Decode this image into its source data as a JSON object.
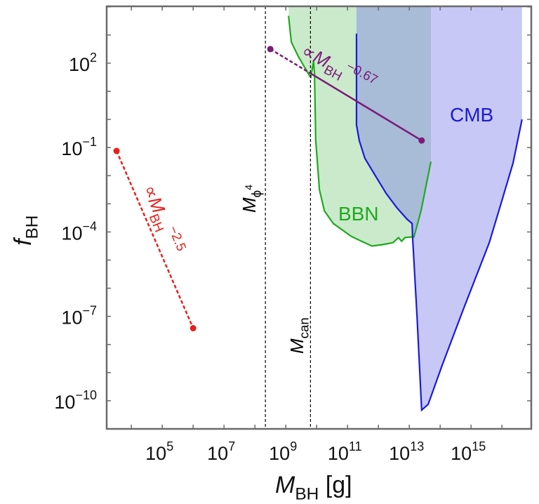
{
  "chart_data": {
    "type": "area",
    "xlabel": {
      "base": "M",
      "sub": "BH",
      "rest": " [g]"
    },
    "ylabel": {
      "base": "f",
      "sub": "BH"
    },
    "x_scale": "log",
    "y_scale": "log",
    "xlim_log10": [
      3.2,
      16.95
    ],
    "ylim_log10": [
      -11.0,
      4.02
    ],
    "x_tick_labels_log10": [
      5,
      7,
      9,
      11,
      13,
      15
    ],
    "y_tick_labels_log10": [
      2,
      -1,
      -4,
      -7,
      -10
    ],
    "grid": false,
    "colors": {
      "bbn": "#1faa1f",
      "bbn_fill": "#cbeacb",
      "cmb": "#1a1ad8",
      "cmb_fill": "rgba(110,110,235,0.38)",
      "red": "#e8201a",
      "purple": "#7a1a78",
      "dashed": "#000000"
    },
    "regions": [
      {
        "name": "BBN",
        "label": "BBN",
        "boundary_log10": [
          [
            9.09,
            3.68
          ],
          [
            9.18,
            2.75
          ],
          [
            9.4,
            2.25
          ],
          [
            9.77,
            1.55
          ],
          [
            9.81,
            1.5
          ],
          [
            9.9,
            2.05
          ],
          [
            9.93,
            1.63
          ],
          [
            9.97,
            -0.75
          ],
          [
            10.09,
            -2.5
          ],
          [
            10.25,
            -3.25
          ],
          [
            10.54,
            -3.7
          ],
          [
            11.11,
            -4.15
          ],
          [
            11.45,
            -4.33
          ],
          [
            11.79,
            -4.5
          ],
          [
            12.13,
            -4.45
          ],
          [
            12.47,
            -4.38
          ],
          [
            12.65,
            -4.2
          ],
          [
            12.75,
            -4.33
          ],
          [
            12.86,
            -4.2
          ],
          [
            13.04,
            -4.18
          ],
          [
            13.15,
            -4.18
          ],
          [
            13.38,
            -3.25
          ],
          [
            13.7,
            -1.5
          ]
        ]
      },
      {
        "name": "CMB",
        "label": "CMB",
        "boundary_log10": [
          [
            11.29,
            3.05
          ],
          [
            11.29,
            -0.2
          ],
          [
            11.38,
            -0.75
          ],
          [
            11.56,
            -1.38
          ],
          [
            11.9,
            -2.0
          ],
          [
            12.25,
            -2.63
          ],
          [
            12.59,
            -3.13
          ],
          [
            12.93,
            -3.55
          ],
          [
            13.09,
            -3.7
          ],
          [
            13.11,
            -4.25
          ],
          [
            13.25,
            -7.0
          ],
          [
            13.4,
            -10.33
          ],
          [
            13.61,
            -10.13
          ],
          [
            14.06,
            -8.75
          ],
          [
            14.75,
            -6.75
          ],
          [
            15.59,
            -4.38
          ],
          [
            16.0,
            -2.88
          ],
          [
            16.36,
            -1.55
          ],
          [
            16.65,
            0.0
          ]
        ]
      }
    ],
    "lines": [
      {
        "name": "red-scaling",
        "points_log10": [
          [
            3.52,
            -1.12
          ],
          [
            6.0,
            -7.42
          ]
        ],
        "style": "dotted",
        "label": {
          "base": "∝M",
          "sub": "BH",
          "sup": "−2.5"
        }
      },
      {
        "name": "purple-scaling",
        "points_log10": [
          [
            8.5,
            2.5
          ],
          [
            13.4,
            -0.75
          ]
        ],
        "dashed_until_log10": 9.8,
        "label": {
          "base": "∝M",
          "sub": "BH",
          "sup": "−0.67"
        }
      }
    ],
    "vertical_lines": [
      {
        "name": "m-phi4",
        "x_log10": 8.34,
        "label": {
          "base": "M",
          "sub": "ϕ",
          "subsup": "4"
        }
      },
      {
        "name": "m-can",
        "x_log10": 9.8,
        "label": {
          "base": "M",
          "sub": "can"
        }
      }
    ]
  }
}
